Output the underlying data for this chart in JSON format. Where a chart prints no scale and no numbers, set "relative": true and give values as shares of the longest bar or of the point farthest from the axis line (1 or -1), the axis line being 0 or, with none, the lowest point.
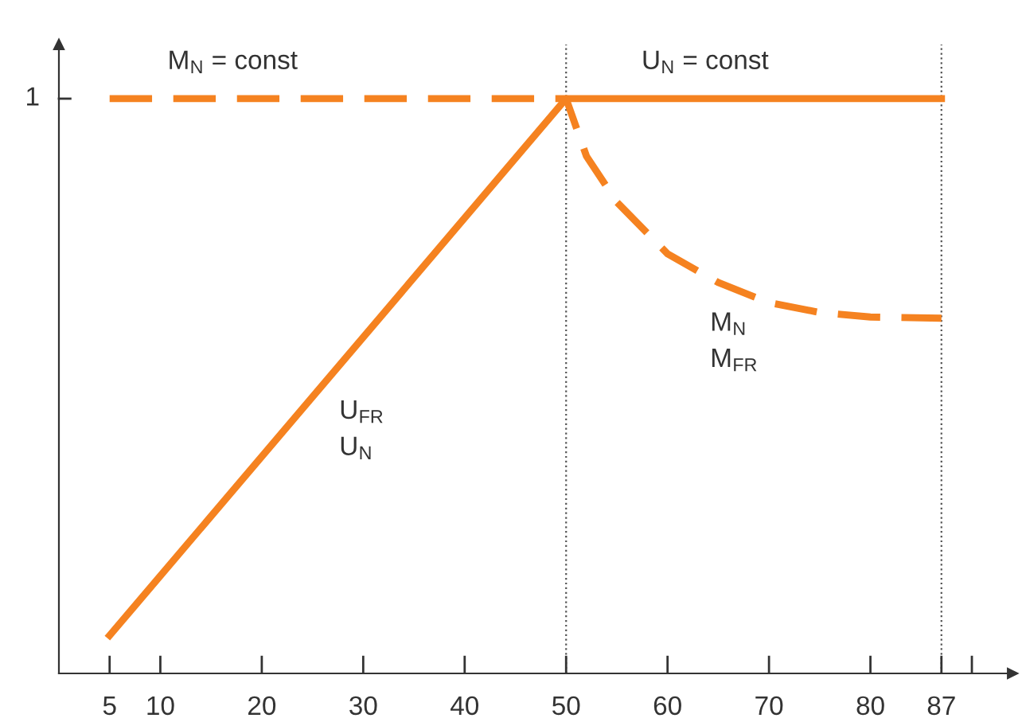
{
  "chart_data": {
    "type": "line",
    "relative": true,
    "xlim": [
      0,
      94
    ],
    "xticks": [
      5,
      10,
      20,
      30,
      40,
      50,
      60,
      70,
      80,
      87,
      {
        "value": 90,
        "label": null
      }
    ],
    "series": [
      {
        "color": "#f58220",
        "line_style": "solid",
        "x": [
          5,
          50,
          87
        ],
        "values": [
          0.066,
          1,
          1
        ]
      },
      {
        "color": "#f58220",
        "line_style": "dashed",
        "x": [
          5,
          50,
          52,
          55,
          60,
          65,
          70,
          75,
          80,
          87
        ],
        "values": [
          1,
          1,
          0.9,
          0.82,
          0.73,
          0.68,
          0.645,
          0.628,
          0.62,
          0.618
        ]
      }
    ],
    "ref_lines": [
      {
        "axis": "x",
        "value": 50,
        "color": "#555555",
        "line_style": "dotted"
      },
      {
        "axis": "x",
        "value": 87,
        "color": "#555555",
        "line_style": "dotted"
      }
    ],
    "annotations": [
      "1",
      "M$_{N}$ = const",
      "U$_{N}$ = const",
      "U$_{FR}$\nU$_{N}$",
      "M$_{N}$\nM$_{FR}$"
    ],
    "grid": false,
    "legend": false
  }
}
